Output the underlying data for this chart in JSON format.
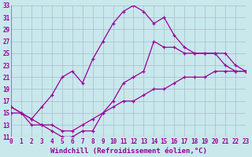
{
  "xlabel": "Windchill (Refroidissement éolien,°C)",
  "line1_x": [
    0,
    1,
    2,
    3,
    4,
    5,
    6,
    7,
    8,
    9,
    10,
    11,
    12,
    13,
    14,
    15,
    16,
    17,
    18,
    19,
    20,
    21,
    22,
    23
  ],
  "line1_y": [
    16,
    15,
    14,
    16,
    18,
    21,
    22,
    20,
    24,
    27,
    30,
    32,
    33,
    32,
    30,
    31,
    28,
    26,
    25,
    25,
    25,
    23,
    22,
    22
  ],
  "line2_x": [
    0,
    1,
    2,
    3,
    4,
    5,
    6,
    7,
    8,
    9,
    10,
    11,
    12,
    13,
    14,
    15,
    16,
    17,
    18,
    19,
    20,
    21,
    22,
    23
  ],
  "line2_y": [
    16,
    15,
    13,
    13,
    12,
    11,
    11,
    12,
    12,
    15,
    17,
    20,
    21,
    22,
    27,
    26,
    26,
    25,
    25,
    25,
    25,
    25,
    23,
    22
  ],
  "line3_x": [
    0,
    1,
    2,
    3,
    4,
    5,
    6,
    7,
    8,
    9,
    10,
    11,
    12,
    13,
    14,
    15,
    16,
    17,
    18,
    19,
    20,
    21,
    22,
    23
  ],
  "line3_y": [
    15,
    15,
    14,
    13,
    13,
    12,
    12,
    13,
    14,
    15,
    16,
    17,
    17,
    18,
    19,
    19,
    20,
    21,
    21,
    21,
    22,
    22,
    22,
    22
  ],
  "line_color": "#990099",
  "bg_color": "#c8e8ec",
  "grid_color": "#aabbcc",
  "xlim": [
    0,
    23
  ],
  "ylim": [
    11,
    33
  ],
  "xticks": [
    0,
    1,
    2,
    3,
    4,
    5,
    6,
    7,
    8,
    9,
    10,
    11,
    12,
    13,
    14,
    15,
    16,
    17,
    18,
    19,
    20,
    21,
    22,
    23
  ],
  "yticks": [
    11,
    13,
    15,
    17,
    19,
    21,
    23,
    25,
    27,
    29,
    31,
    33
  ],
  "tick_fontsize": 5.5,
  "label_fontsize": 6.5
}
